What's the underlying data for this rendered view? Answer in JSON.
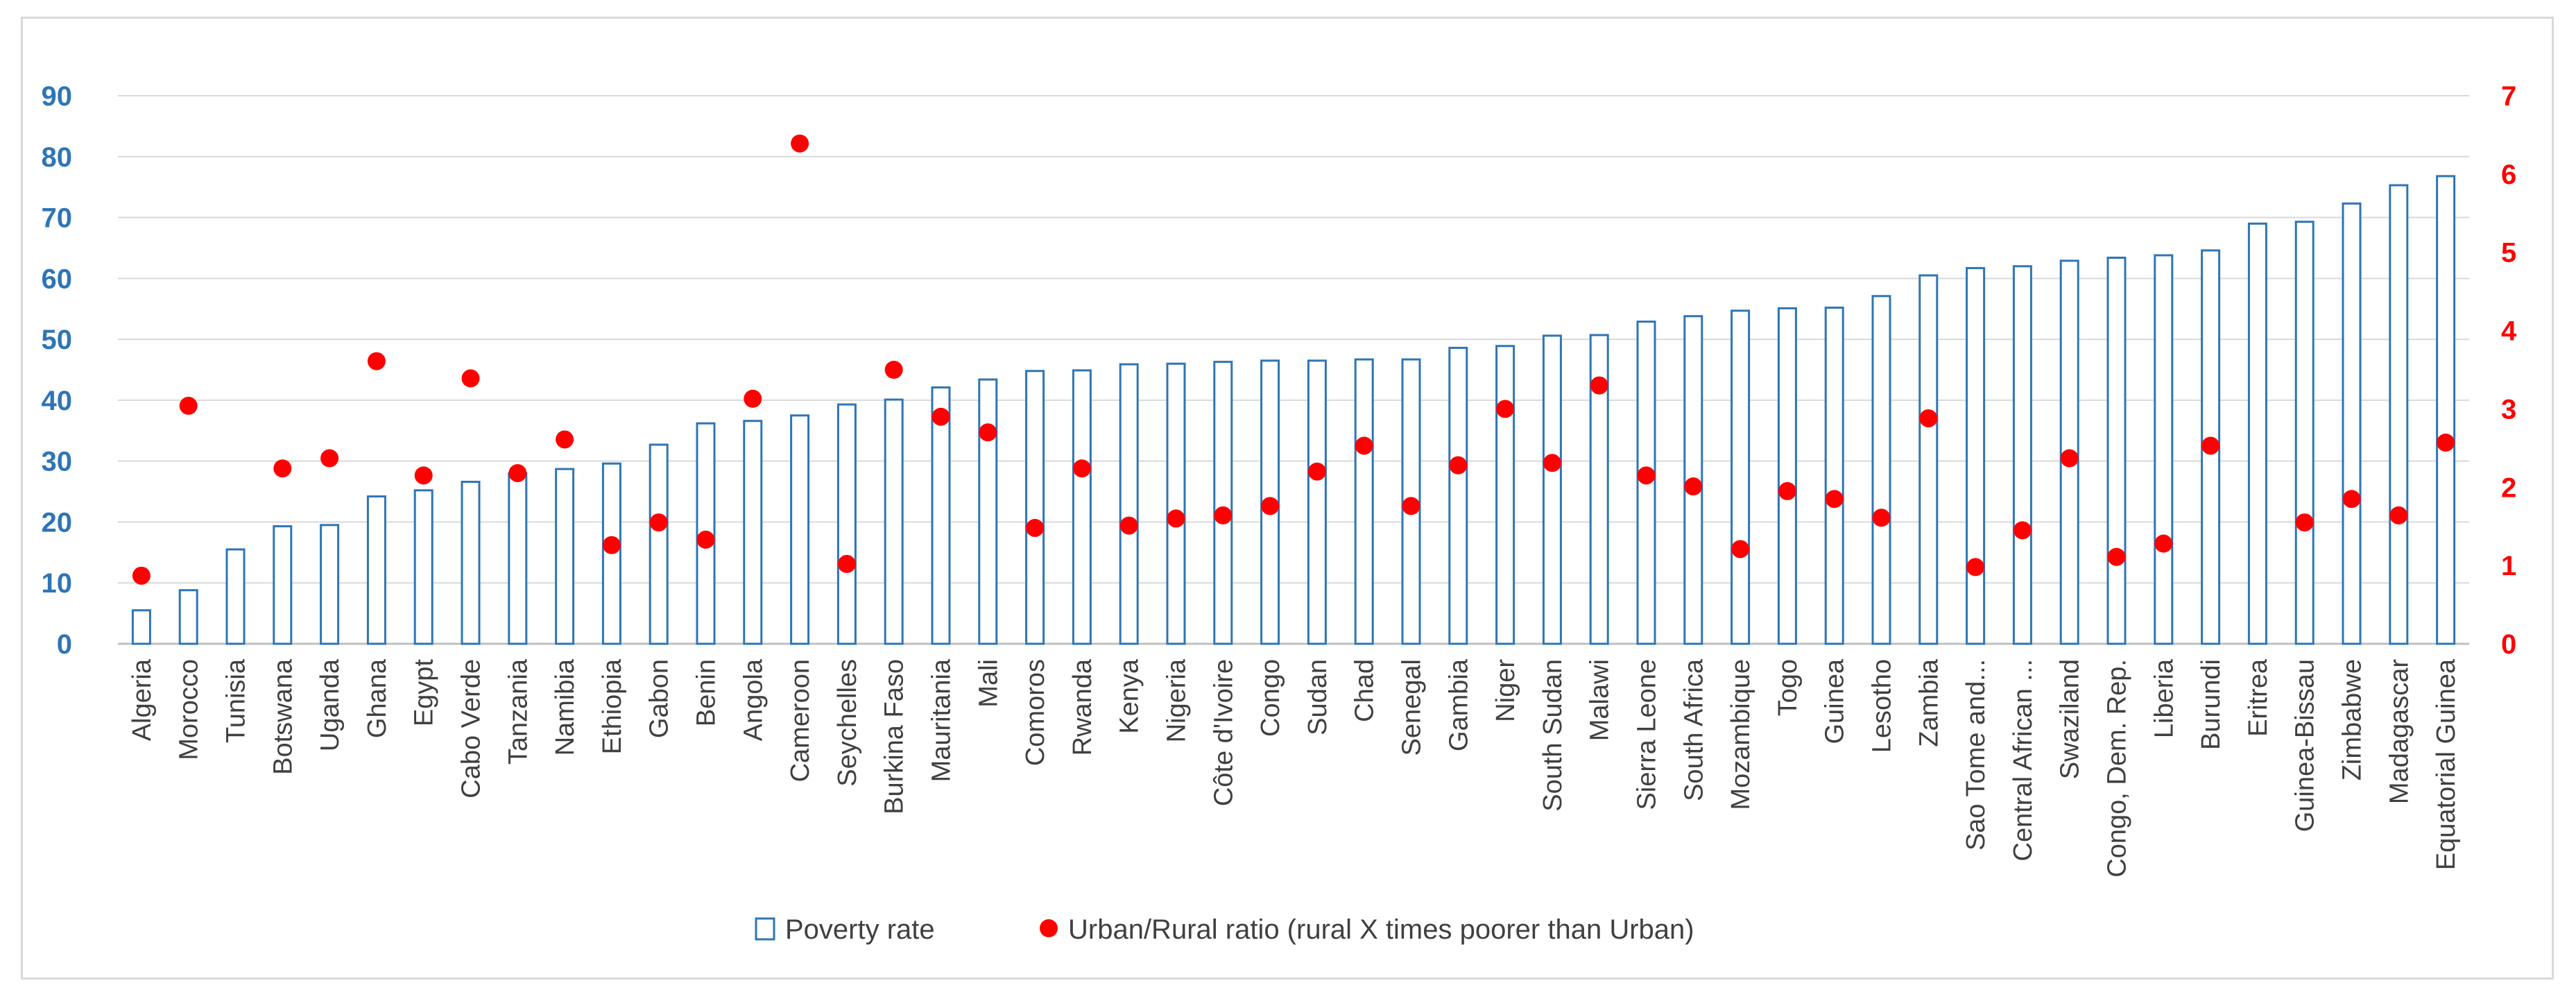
{
  "chart_data": {
    "type": "bar",
    "categories": [
      "Algeria",
      "Morocco",
      "Tunisia",
      "Botswana",
      "Uganda",
      "Ghana",
      "Egypt",
      "Cabo Verde",
      "Tanzania",
      "Namibia",
      "Ethiopia",
      "Gabon",
      "Benin",
      "Angola",
      "Cameroon",
      "Seychelles",
      "Burkina Faso",
      "Mauritania",
      "Mali",
      "Comoros",
      "Rwanda",
      "Kenya",
      "Nigeria",
      "Côte d'Ivoire",
      "Congo",
      "Sudan",
      "Chad",
      "Senegal",
      "Gambia",
      "Niger",
      "South Sudan",
      "Malawi",
      "Sierra Leone",
      "South Africa",
      "Mozambique",
      "Togo",
      "Guinea",
      "Lesotho",
      "Zambia",
      "Sao Tome and...",
      "Central African ...",
      "Swaziland",
      "Congo, Dem. Rep.",
      "Liberia",
      "Burundi",
      "Eritrea",
      "Guinea-Bissau",
      "Zimbabwe",
      "Madagascar",
      "Equatorial Guinea"
    ],
    "series": [
      {
        "name": "Poverty rate",
        "type": "bar",
        "axis": "left",
        "color": "#2e75b6",
        "values": [
          5.5,
          8.8,
          15.5,
          19.3,
          19.5,
          24.2,
          25.2,
          26.6,
          28,
          28.7,
          29.6,
          32.7,
          36.2,
          36.6,
          37.5,
          39.3,
          40.1,
          42.1,
          43.4,
          44.8,
          44.9,
          45.9,
          46,
          46.3,
          46.5,
          46.5,
          46.7,
          46.7,
          48.6,
          48.9,
          50.6,
          50.7,
          52.9,
          53.8,
          54.7,
          55.1,
          55.2,
          57.1,
          60.5,
          61.7,
          62,
          62.9,
          63.4,
          63.8,
          64.6,
          69,
          69.3,
          72.3,
          75.3,
          76.8
        ]
      },
      {
        "name": "Urban/Rural ratio (rural X times poorer than Urban)",
        "type": "scatter",
        "axis": "right",
        "color": "#ff0000",
        "values": [
          0.87,
          3.04,
          null,
          2.24,
          2.37,
          3.61,
          2.15,
          3.39,
          2.18,
          2.61,
          1.26,
          1.55,
          1.33,
          3.13,
          6.39,
          1.02,
          3.5,
          2.9,
          2.7,
          1.48,
          2.24,
          1.51,
          1.6,
          1.64,
          1.76,
          2.2,
          2.53,
          1.76,
          2.28,
          3,
          2.31,
          3.3,
          2.15,
          2.01,
          1.21,
          1.95,
          1.85,
          1.61,
          2.88,
          0.98,
          1.45,
          2.37,
          1.11,
          1.28,
          2.53,
          null,
          1.55,
          1.85,
          1.64,
          2.57
        ]
      }
    ],
    "y_left": {
      "ylim": [
        0,
        90
      ],
      "ticks": [
        "0",
        "10",
        "20",
        "30",
        "40",
        "50",
        "60",
        "70",
        "80",
        "90"
      ],
      "color": "#2e75b6"
    },
    "y_right": {
      "ylim": [
        0,
        7
      ],
      "ticks": [
        "0",
        "1",
        "2",
        "3",
        "4",
        "5",
        "6",
        "7"
      ],
      "color": "#ff0000"
    },
    "grid": true,
    "legend_position": "bottom",
    "title": "",
    "xlabel": "",
    "ylabel": ""
  }
}
